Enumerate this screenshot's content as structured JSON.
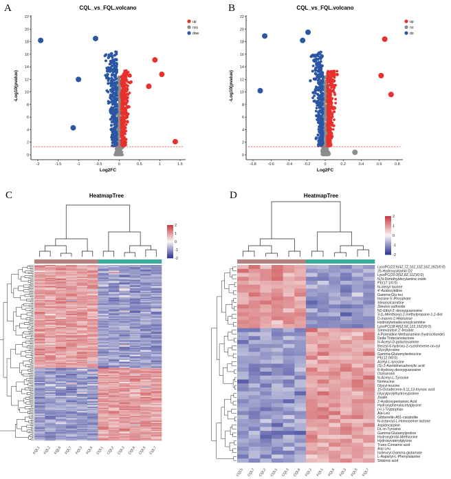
{
  "panels": [
    "A",
    "B",
    "C",
    "D"
  ],
  "chart_data": [
    {
      "type": "scatter",
      "title": "CQL_vs_FQL.volcano",
      "xlabel": "Log2FC",
      "ylabel": "-Log10(pvalue)",
      "xlim": [
        -2,
        1.5
      ],
      "ylim": [
        0,
        22
      ],
      "xticks": [
        "-2",
        "-1.5",
        "-1",
        "-0.5",
        "0",
        "0.5",
        "1",
        "1.5"
      ],
      "xtickvals": [
        -2,
        -1.5,
        -1,
        -0.5,
        0,
        0.5,
        1,
        1.5
      ],
      "yticks": [
        0,
        2,
        4,
        6,
        8,
        10,
        12,
        14,
        16,
        18,
        20,
        22
      ],
      "threshold": 1.3,
      "legend_position": "top-right",
      "legend": [
        {
          "label": "up",
          "color": "#e8312c"
        },
        {
          "label": "nos",
          "color": "#8c8c8c"
        },
        {
          "label": "dow",
          "color": "#2a56a4"
        }
      ],
      "notable_points": [
        {
          "x": -1.93,
          "y": 18.2,
          "group": "dow"
        },
        {
          "x": -1.13,
          "y": 4.3,
          "group": "dow"
        },
        {
          "x": 0.88,
          "y": 15.1,
          "group": "up"
        },
        {
          "x": 1.05,
          "y": 12.8,
          "group": "up"
        },
        {
          "x": 1.38,
          "y": 2.1,
          "group": "up"
        },
        {
          "x": 0.73,
          "y": 10.9,
          "group": "up"
        },
        {
          "x": -0.58,
          "y": 18.5,
          "group": "dow"
        },
        {
          "x": -1.0,
          "y": 12.0,
          "group": "dow"
        }
      ]
    },
    {
      "type": "scatter",
      "title": "CQL_vs_FQL.volcano",
      "xlabel": "Log2FC",
      "ylabel": "-Log10(pvalue)",
      "xlim": [
        -0.8,
        0.8
      ],
      "ylim": [
        0,
        22
      ],
      "xticks": [
        "-0.8",
        "-0.6",
        "-0.4",
        "-0.2",
        "0",
        "0.2",
        "0.4",
        "0.6",
        "0.8"
      ],
      "xtickvals": [
        -0.8,
        -0.6,
        -0.4,
        -0.2,
        0,
        0.2,
        0.4,
        0.6,
        0.8
      ],
      "yticks": [
        0,
        2,
        4,
        6,
        8,
        10,
        12,
        14,
        16,
        18,
        20,
        22
      ],
      "threshold": 1.3,
      "legend_position": "top-right",
      "legend": [
        {
          "label": "up",
          "color": "#e8312c"
        },
        {
          "label": "no",
          "color": "#8c8c8c"
        },
        {
          "label": "do",
          "color": "#2a56a4"
        }
      ],
      "notable_points": [
        {
          "x": -0.67,
          "y": 18.9,
          "group": "do"
        },
        {
          "x": -0.19,
          "y": 19.5,
          "group": "do"
        },
        {
          "x": -0.25,
          "y": 18.2,
          "group": "do"
        },
        {
          "x": 0.66,
          "y": 18.4,
          "group": "up"
        },
        {
          "x": 0.62,
          "y": 12.6,
          "group": "up"
        },
        {
          "x": 0.73,
          "y": 9.6,
          "group": "up"
        },
        {
          "x": 0.33,
          "y": 0.4,
          "group": "no"
        },
        {
          "x": -0.72,
          "y": 10.2,
          "group": "do"
        }
      ]
    },
    {
      "type": "heatmap",
      "title": "HeatmapTree",
      "scale_ticks": [
        "2",
        "1",
        "0",
        "-1",
        "-2"
      ],
      "columns": [
        "FQL1",
        "FQL2",
        "FQL6",
        "FQL7",
        "FQL3",
        "FQL5",
        "CQL1",
        "CQL2",
        "CQL3",
        "CQL6",
        "CQL5",
        "CQL7"
      ],
      "group_colors": {
        "FQL": "#b57f7d",
        "CQL": "#3aa99e"
      }
    },
    {
      "type": "heatmap",
      "title": "HeatmapTree",
      "scale_ticks": [
        "2",
        "1",
        "0",
        "-1",
        "-2"
      ],
      "columns": [
        "CQL5",
        "CQL7",
        "CQL2",
        "CQL1",
        "CQL3",
        "CQL6",
        "FQL2",
        "FQL1",
        "FQL6",
        "FQL3",
        "FQL5",
        "FQL7"
      ],
      "group_colors": {
        "CQL": "#b57f7d",
        "FQL": "#3aa99e"
      },
      "rows": [
        "LysoPC(22:6(4Z,7Z,10Z,13Z,16Z,19Z)/0:0)",
        "25-Hydroxyvitamin D2",
        "LysoPC(20:3(5Z,8Z,11Z)/0:0)",
        "N,N-Dimethyldecylamine oxide",
        "PE(17:1/0:0)",
        "N-oleoyl taurine",
        "4'-Azidocytidine",
        "Gamma-Glu-leu",
        "Inosine 5'-Phosphate",
        "Stearoylcarnitine",
        "Zileuton sulfoxide",
        "N2-Ethyl-2'-deoxyguanosine",
        "3-(L-Menthoxy)-2-methylpropane-1,2-diol",
        "D-manno-2-Heptulose",
        "Hydroxytetradecenoylcarnitine",
        "LysoPC(18:4(6Z,9Z,12Z,15Z)/0:0)",
        "Simmondsin 2'-ferulate",
        "4-Pyrimidine Methanamine (hydrochloride)",
        "Delta-Tridecanolactone",
        "N-Acetyl-D-galactosamine",
        "Benzyl-6-hydroxy-2-cyclohexene-on-oyl",
        "Glycyltyrosine",
        "Gamma-Glutamylisoleucine",
        "PE(12:0/0:0)",
        "Acetyl-L-tyrosine",
        "(S)-2-Azetidinecarboxylic acid",
        "8-Hydroxy-deoxyguanosine",
        "Osmaronin",
        "N-Acetyl-L-Tyrosine",
        "Norleucine",
        "Glycyl-leucine",
        "15-Octadecene-9,11,13-triynoic acid",
        "Glycylprolylhydroxyproline",
        "Zeatin",
        "2-Hydroxypentanoic Acid",
        "Hydroxyphenylacetylglycine",
        "(+/-)-Tryptophan",
        "Ala-Leu",
        "Gibberellin A51-catabolite",
        "N-octanoyl-L-Homoserine lactone",
        "Aspidocarpine",
        "DL-m-Tyrosine",
        "Gamma-Glutamylproline",
        "Hydroxyprolyl-Methionine",
        "Hydroxyvalerylglycine",
        "Trans-Cinnamic acid",
        "Asp Leu",
        "Isoleucyl-Gamma-glutamate",
        "L-Aspartyl-L-Phenylalanine",
        "Shikimic acid"
      ],
      "up_in_CQL_rows": 16
    }
  ]
}
